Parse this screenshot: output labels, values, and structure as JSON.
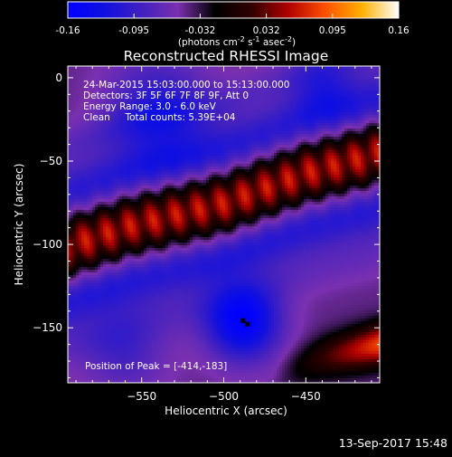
{
  "chart_data": {
    "type": "heatmap",
    "title": "Reconstructed RHESSI Image",
    "xlabel": "Heliocentric X (arcsec)",
    "ylabel": "Heliocentric Y (arcsec)",
    "xlim": [
      -595,
      -405
    ],
    "ylim": [
      -183,
      7
    ],
    "xticks": [
      -550,
      -500,
      -450
    ],
    "yticks": [
      0,
      -50,
      -100,
      -150
    ],
    "colorbar": {
      "vmin": -0.16,
      "vmax": 0.16,
      "tick_labels": [
        "-0.16",
        "-0.095",
        "-0.032",
        "0.032",
        "0.095",
        "0.16"
      ],
      "unit_label": "(photons cm^-2 s^-1 asec^-2)",
      "colors": [
        "#0000ff",
        "#1010e0",
        "#4020c0",
        "#7a30b0",
        "#000000",
        "#300000",
        "#b00000",
        "#ff5000",
        "#ffb000",
        "#ffffff"
      ]
    },
    "annotations": [
      "24-Mar-2015 15:03:00.000 to 15:13:00.000",
      "Detectors: 3F 5F 6F 7F 8F 9F, Att 0",
      "Energy Range: 3.0 - 6.0 keV",
      "Clean     Total counts: 5.39E+04"
    ],
    "peak_label": "Position of Peak = [-414,-183]",
    "peak_position": [
      -414,
      -183
    ],
    "features": {
      "bright_ridge": [
        [
          -595,
          -101
        ],
        [
          -555,
          -88
        ],
        [
          -500,
          -75
        ],
        [
          -450,
          -57
        ],
        [
          -405,
          -45
        ]
      ],
      "ridge_peak_value": 0.12,
      "lower_positive_band": [
        [
          -500,
          -190
        ],
        [
          -440,
          -168
        ],
        [
          -405,
          -160
        ]
      ],
      "lower_band_peak_value": 0.13,
      "negative_minimum": [
        -488,
        -147
      ],
      "negative_minimum_value": -0.16
    },
    "date_stamp": "13-Sep-2017 15:48"
  }
}
